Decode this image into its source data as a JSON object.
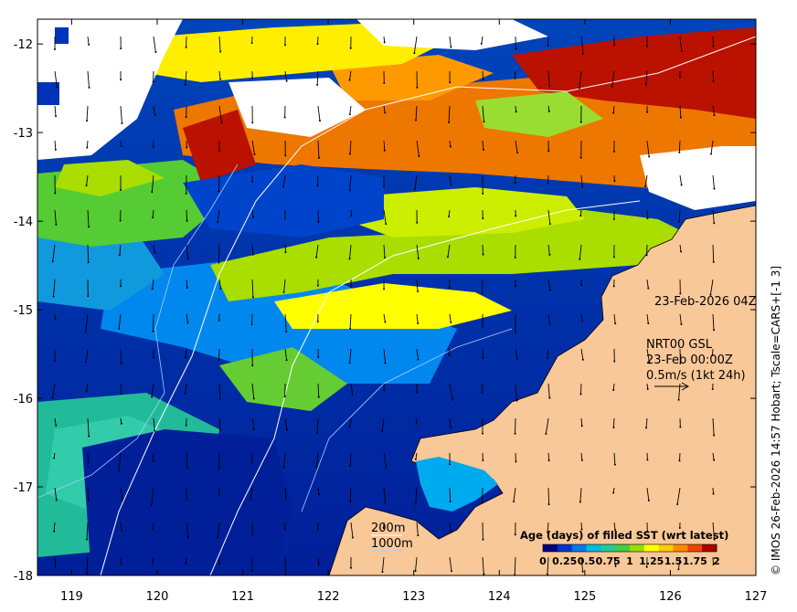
{
  "map": {
    "lon_range": [
      118.6,
      127.0
    ],
    "lat_range": [
      -18.0,
      -11.72
    ],
    "x_ticks": [
      "119",
      "120",
      "121",
      "122",
      "123",
      "124",
      "125",
      "126",
      "127"
    ],
    "x_tick_values": [
      119,
      120,
      121,
      122,
      123,
      124,
      125,
      126,
      127
    ],
    "y_ticks": [
      "-12",
      "-13",
      "-14",
      "-15",
      "-16",
      "-17",
      "-18"
    ],
    "y_tick_values": [
      -12,
      -13,
      -14,
      -15,
      -16,
      -17,
      -18
    ],
    "land_color": "#f9c898",
    "missing_color": "#ffffff"
  },
  "annotations": {
    "date": "23-Feb-2026 04Z",
    "product": "NRT00 GSL",
    "valid": "23-Feb 00:00Z",
    "scale": "0.5m/s (1kt 24h)"
  },
  "contours": {
    "c200": "200m",
    "c1000": "1000m"
  },
  "colorbar": {
    "title": "Age (days) of filled SST (wrt latest)",
    "tick_labels": [
      "0",
      "0.25",
      "0.5",
      "0.75",
      "1",
      "1.25",
      "1.5",
      "1.75",
      "2"
    ],
    "range": [
      0,
      2
    ],
    "colors": [
      "#000080",
      "#0033cc",
      "#0077ee",
      "#00bbdd",
      "#22cc99",
      "#44cc44",
      "#99dd00",
      "#ffff00",
      "#ffcc00",
      "#ff8800",
      "#ee4400",
      "#aa0000"
    ]
  },
  "credit": "© IMOS 26-Feb-2026 14:57 Hobart; Tscale=CARS+[-1 3]"
}
